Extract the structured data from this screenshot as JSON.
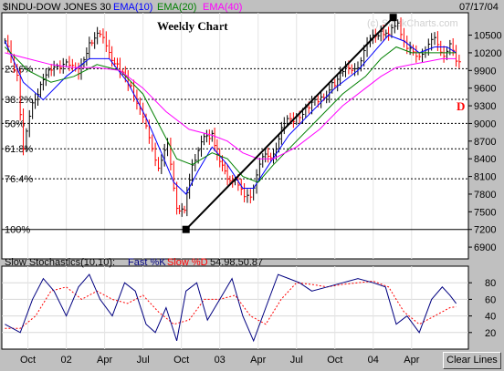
{
  "header": {
    "symbol": "$INDU-DOW JONES 30",
    "ema10": "EMA(10)",
    "ema20": "EMA(20)",
    "ema40": "EMA(40)",
    "date": "07/17/04"
  },
  "watermark": "(c) StockCharts.com",
  "stoch_header": {
    "title": "Slow Stochastics(10,10):",
    "fastk": "Fast %K",
    "slowd": "Slow %D",
    "values": "54.98,50.87"
  },
  "clear_lines_label": "Clear Lines",
  "colors": {
    "ema10": "#0000ff",
    "ema20": "#008000",
    "ema40": "#ff00ff",
    "up_bar": "#000000",
    "down_bar": "#ff0000",
    "fastk": "#000080",
    "slowd": "#ff0000",
    "plot_bg": "#ffffff",
    "frame_bg": "#c0c0c0"
  },
  "chart_data": [
    {
      "type": "line",
      "title": "Weekly Chart",
      "y_ticks": [
        6900,
        7200,
        7500,
        7800,
        8100,
        8400,
        8700,
        9000,
        9300,
        9600,
        9900,
        10200,
        10500
      ],
      "ylim": [
        6700,
        10880
      ],
      "x_tick_labels": [
        "Oct",
        "02",
        "Apr",
        "Jul",
        "Oct",
        "03",
        "Apr",
        "Jul",
        "Oct",
        "04",
        "Apr"
      ],
      "x_ticks": [
        2001.75,
        2002.0,
        2002.25,
        2002.5,
        2002.75,
        2003.0,
        2003.25,
        2003.5,
        2003.75,
        2004.0,
        2004.25
      ],
      "xlim": [
        2001.58,
        2004.62
      ],
      "series": [
        {
          "name": "$INDU",
          "x": [
            2001.6,
            2001.68,
            2001.72,
            2001.78,
            2001.85,
            2001.92,
            2002.0,
            2002.08,
            2002.15,
            2002.22,
            2002.28,
            2002.35,
            2002.42,
            2002.48,
            2002.54,
            2002.6,
            2002.66,
            2002.72,
            2002.77,
            2002.82,
            2002.88,
            2002.95,
            2003.0,
            2003.05,
            2003.1,
            2003.16,
            2003.2,
            2003.28,
            2003.35,
            2003.42,
            2003.5,
            2003.58,
            2003.66,
            2003.75,
            2003.82,
            2003.9,
            2003.98,
            2004.05,
            2004.1,
            2004.16,
            2004.22,
            2004.28,
            2004.34,
            2004.4,
            2004.46,
            2004.5,
            2004.54
          ],
          "values": [
            10400,
            9800,
            8600,
            9300,
            9800,
            9900,
            10100,
            9800,
            10400,
            10500,
            10200,
            9900,
            9600,
            9300,
            8700,
            8300,
            8600,
            7600,
            7500,
            8300,
            8700,
            8800,
            8400,
            8000,
            8100,
            7700,
            7800,
            8400,
            8500,
            9000,
            9100,
            9300,
            9400,
            9700,
            9900,
            10000,
            10400,
            10600,
            10500,
            10700,
            10300,
            10100,
            10300,
            10400,
            10200,
            10300,
            10100
          ]
        },
        {
          "name": "EMA(10)",
          "x": [
            2001.6,
            2001.72,
            2001.85,
            2002.0,
            2002.15,
            2002.28,
            2002.4,
            2002.52,
            2002.62,
            2002.7,
            2002.78,
            2002.86,
            2002.95,
            2003.05,
            2003.15,
            2003.22,
            2003.32,
            2003.45,
            2003.6,
            2003.75,
            2003.9,
            2004.0,
            2004.1,
            2004.2,
            2004.3,
            2004.4,
            2004.48,
            2004.54
          ],
          "values": [
            10400,
            9700,
            9400,
            9800,
            10100,
            10100,
            9700,
            9100,
            8500,
            8000,
            7800,
            8200,
            8600,
            8300,
            7900,
            7900,
            8300,
            8800,
            9200,
            9600,
            9900,
            10200,
            10500,
            10400,
            10200,
            10300,
            10300,
            10200
          ]
        },
        {
          "name": "EMA(20)",
          "x": [
            2001.6,
            2001.75,
            2001.9,
            2002.05,
            2002.2,
            2002.35,
            2002.5,
            2002.62,
            2002.72,
            2002.82,
            2002.95,
            2003.05,
            2003.15,
            2003.25,
            2003.35,
            2003.5,
            2003.65,
            2003.8,
            2003.95,
            2004.05,
            2004.15,
            2004.25,
            2004.35,
            2004.45,
            2004.54
          ],
          "values": [
            10300,
            9900,
            9700,
            9800,
            10000,
            9900,
            9500,
            8900,
            8400,
            8300,
            8500,
            8400,
            8100,
            8000,
            8300,
            8700,
            9100,
            9500,
            9800,
            10100,
            10300,
            10200,
            10200,
            10200,
            10200
          ]
        },
        {
          "name": "EMA(40)",
          "x": [
            2001.6,
            2001.75,
            2001.9,
            2002.05,
            2002.2,
            2002.35,
            2002.5,
            2002.65,
            2002.8,
            2002.95,
            2003.05,
            2003.15,
            2003.25,
            2003.35,
            2003.5,
            2003.65,
            2003.8,
            2003.95,
            2004.05,
            2004.15,
            2004.25,
            2004.35,
            2004.45,
            2004.54
          ],
          "values": [
            10200,
            10100,
            10000,
            9950,
            9950,
            9900,
            9600,
            9200,
            8900,
            8800,
            8700,
            8500,
            8400,
            8400,
            8600,
            8900,
            9300,
            9600,
            9800,
            9950,
            10000,
            10050,
            10100,
            10100
          ]
        }
      ],
      "fib_levels": [
        {
          "label": "23.6%",
          "value": 9930
        },
        {
          "label": "38.2%",
          "value": 9410
        },
        {
          "label": "50%",
          "value": 9000
        },
        {
          "label": "61.8%",
          "value": 8570
        },
        {
          "label": "76.4%",
          "value": 8060
        },
        {
          "label": "100%",
          "value": 7200
        }
      ],
      "trendline": {
        "x": [
          2002.78,
          2004.13
        ],
        "values": [
          7200,
          10800
        ]
      },
      "annotation_d": "D"
    },
    {
      "type": "line",
      "title": "Slow Stochastics(10,10)",
      "y_ticks": [
        20,
        40,
        60,
        80
      ],
      "ylim": [
        0,
        100
      ],
      "series": [
        {
          "name": "Fast %K",
          "x": [
            2001.6,
            2001.7,
            2001.78,
            2001.85,
            2001.92,
            2002.0,
            2002.08,
            2002.15,
            2002.22,
            2002.3,
            2002.38,
            2002.45,
            2002.52,
            2002.58,
            2002.65,
            2002.72,
            2002.78,
            2002.85,
            2002.92,
            2003.0,
            2003.08,
            2003.15,
            2003.22,
            2003.3,
            2003.38,
            2003.45,
            2003.52,
            2003.6,
            2003.7,
            2003.8,
            2003.9,
            2004.0,
            2004.08,
            2004.15,
            2004.22,
            2004.3,
            2004.38,
            2004.45,
            2004.5,
            2004.54
          ],
          "values": [
            30,
            20,
            60,
            85,
            70,
            40,
            75,
            90,
            60,
            40,
            80,
            70,
            30,
            20,
            50,
            10,
            70,
            80,
            35,
            60,
            85,
            40,
            10,
            50,
            90,
            85,
            80,
            70,
            75,
            80,
            85,
            80,
            75,
            30,
            40,
            20,
            60,
            75,
            65,
            55
          ]
        },
        {
          "name": "Slow %D",
          "x": [
            2001.6,
            2001.7,
            2001.8,
            2001.9,
            2002.0,
            2002.1,
            2002.2,
            2002.3,
            2002.4,
            2002.5,
            2002.6,
            2002.7,
            2002.8,
            2002.9,
            2003.0,
            2003.1,
            2003.2,
            2003.3,
            2003.4,
            2003.5,
            2003.6,
            2003.7,
            2003.8,
            2003.9,
            2004.0,
            2004.1,
            2004.2,
            2004.3,
            2004.4,
            2004.5,
            2004.54
          ],
          "values": [
            25,
            25,
            40,
            70,
            75,
            60,
            70,
            60,
            55,
            65,
            45,
            30,
            35,
            60,
            60,
            65,
            40,
            30,
            60,
            80,
            78,
            75,
            78,
            80,
            82,
            75,
            45,
            30,
            40,
            50,
            51
          ]
        }
      ]
    }
  ]
}
